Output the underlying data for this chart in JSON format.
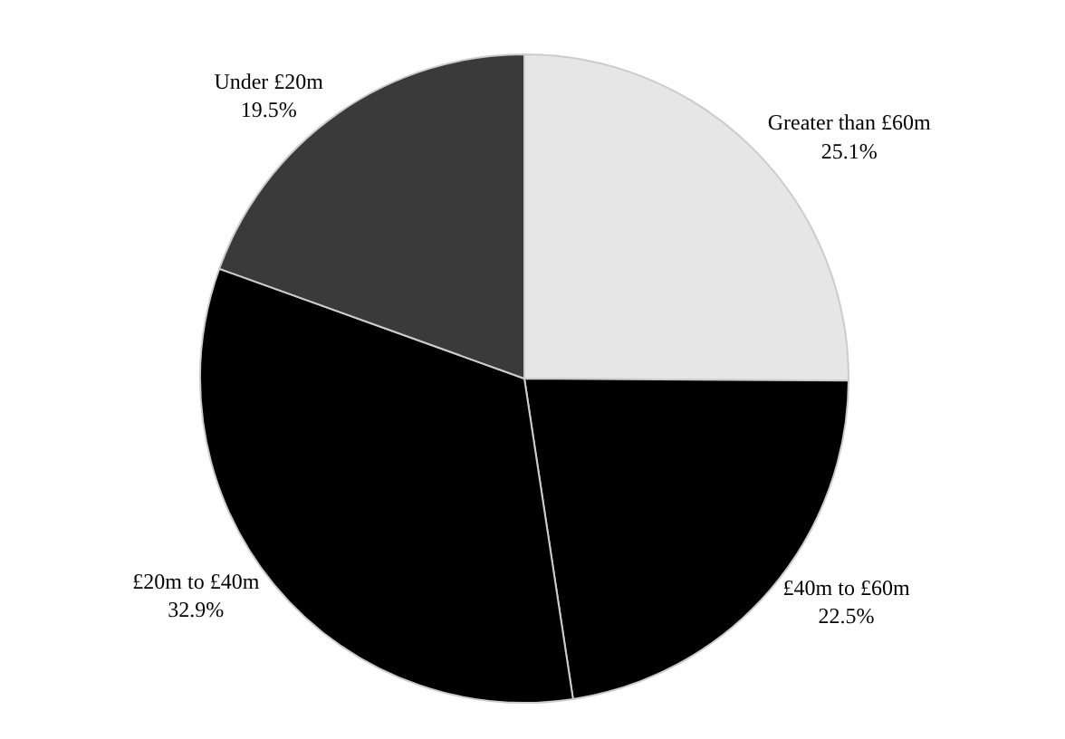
{
  "chart_data": {
    "type": "pie",
    "categories": [
      "Greater than £60m",
      "£40m to £60m",
      "£20m to £40m",
      "Under £20m"
    ],
    "values": [
      25.1,
      22.5,
      32.9,
      19.5
    ],
    "colors": [
      "#e6e6e6",
      "#000000",
      "#000000",
      "#3a3a3a"
    ],
    "value_labels": [
      "25.1%",
      "22.5%",
      "32.9%",
      "19.5%"
    ],
    "legend": false
  }
}
